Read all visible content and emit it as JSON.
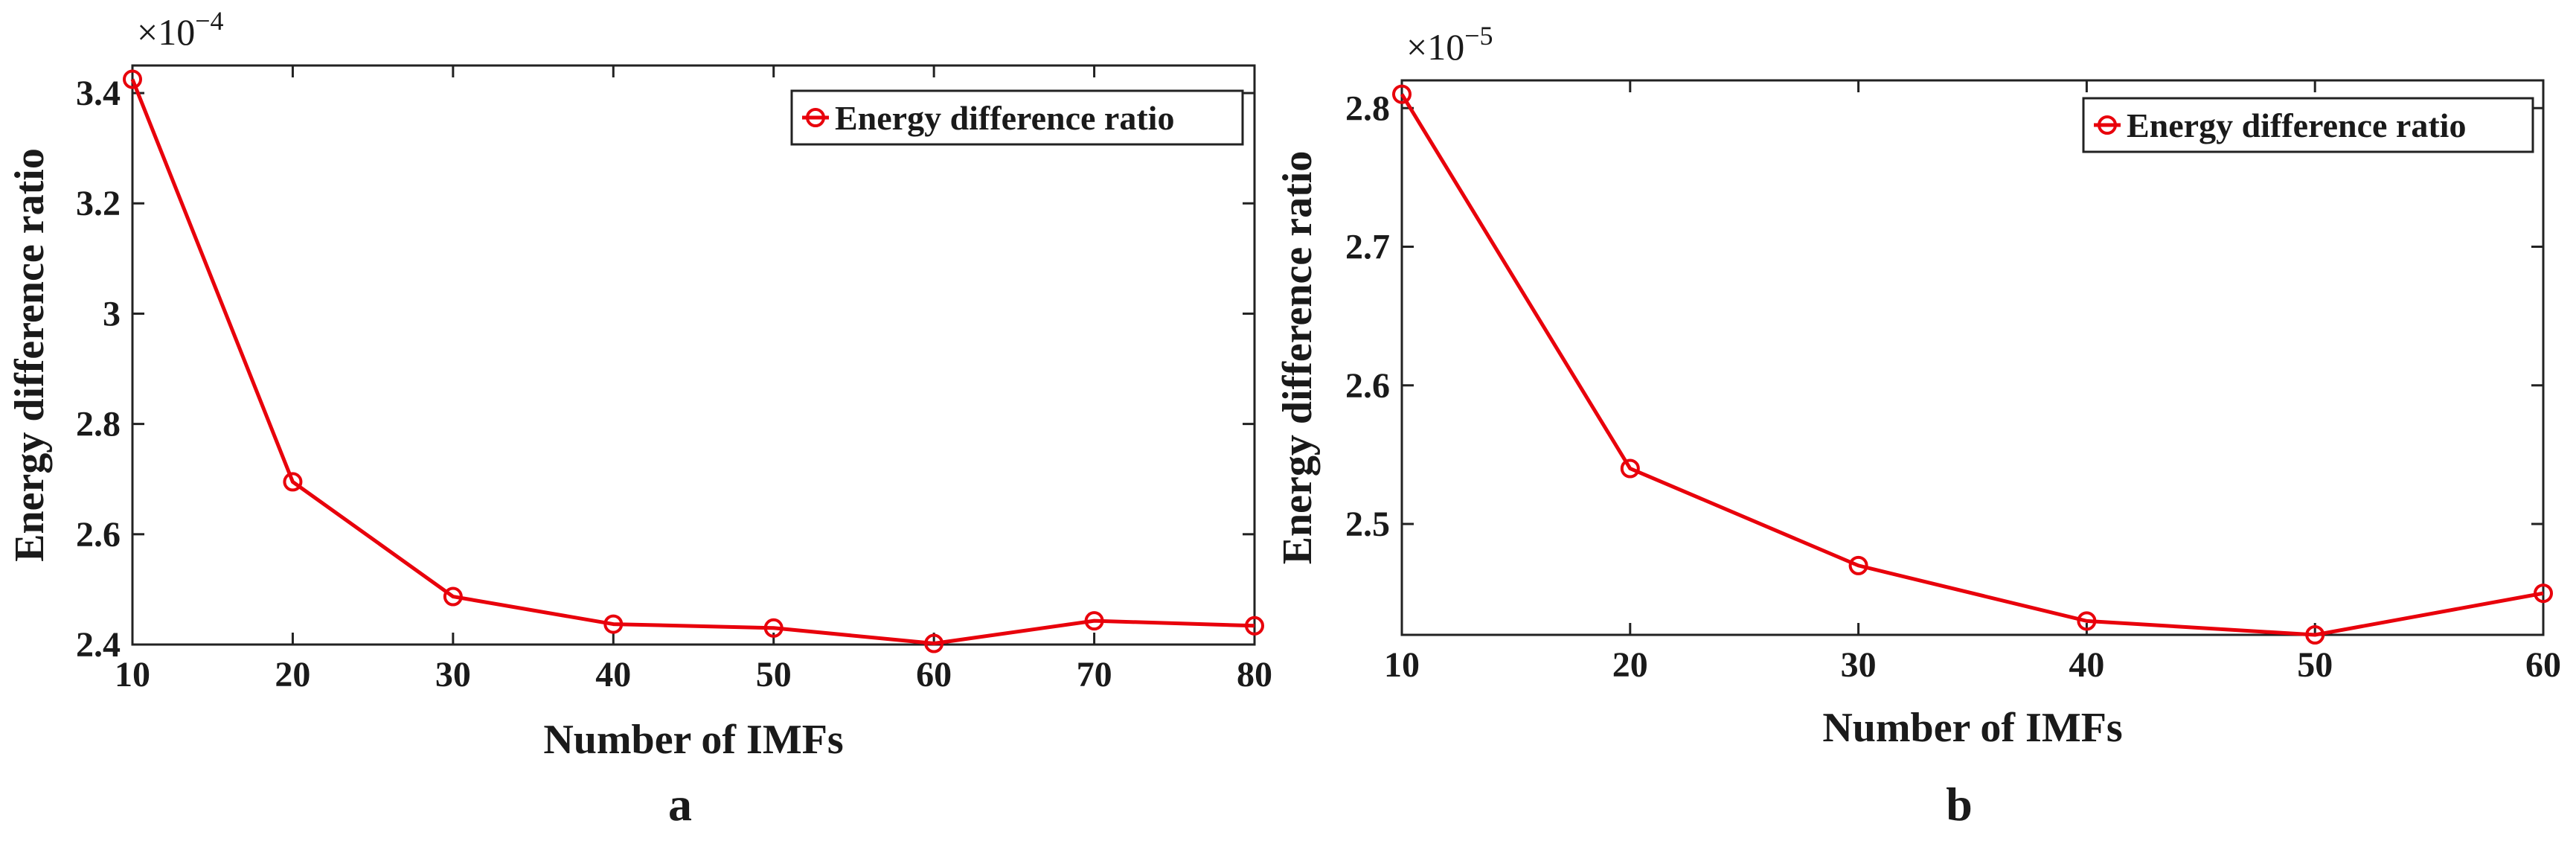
{
  "chart_data": [
    {
      "type": "line",
      "panel_label": "a",
      "title": "",
      "xlabel": "Number of IMFs",
      "ylabel": "Energy difference ratio",
      "y_exponent_base": "×10",
      "y_exponent_power": "−4",
      "x": [
        10,
        20,
        30,
        40,
        50,
        60,
        70,
        80
      ],
      "xlim": [
        10,
        80
      ],
      "ylim": [
        2.4,
        3.45
      ],
      "xticks": [
        10,
        20,
        30,
        40,
        50,
        60,
        70,
        80
      ],
      "yticks": [
        2.4,
        2.6,
        2.8,
        3,
        3.2,
        3.4
      ],
      "ytick_labels": [
        "2.4",
        "2.6",
        "2.8",
        "3",
        "3.2",
        "3.4"
      ],
      "grid": false,
      "legend_position": "top-right",
      "series": [
        {
          "name": "Energy difference ratio",
          "color": "#e8000b",
          "marker": "circle",
          "values": [
            3.425,
            2.695,
            2.487,
            2.437,
            2.43,
            2.402,
            2.443,
            2.434
          ]
        }
      ]
    },
    {
      "type": "line",
      "panel_label": "b",
      "title": "",
      "xlabel": "Number of IMFs",
      "ylabel": "Energy difference ratio",
      "y_exponent_base": "×10",
      "y_exponent_power": "−5",
      "x": [
        10,
        20,
        30,
        40,
        50,
        60
      ],
      "xlim": [
        10,
        60
      ],
      "ylim": [
        2.42,
        2.82
      ],
      "xticks": [
        10,
        20,
        30,
        40,
        50,
        60
      ],
      "yticks": [
        2.5,
        2.6,
        2.7,
        2.8
      ],
      "ytick_labels": [
        "2.5",
        "2.6",
        "2.7",
        "2.8"
      ],
      "grid": false,
      "legend_position": "top-right",
      "series": [
        {
          "name": "Energy difference ratio",
          "color": "#e8000b",
          "marker": "circle",
          "values": [
            2.81,
            2.54,
            2.47,
            2.43,
            2.42,
            2.45
          ]
        }
      ]
    }
  ]
}
